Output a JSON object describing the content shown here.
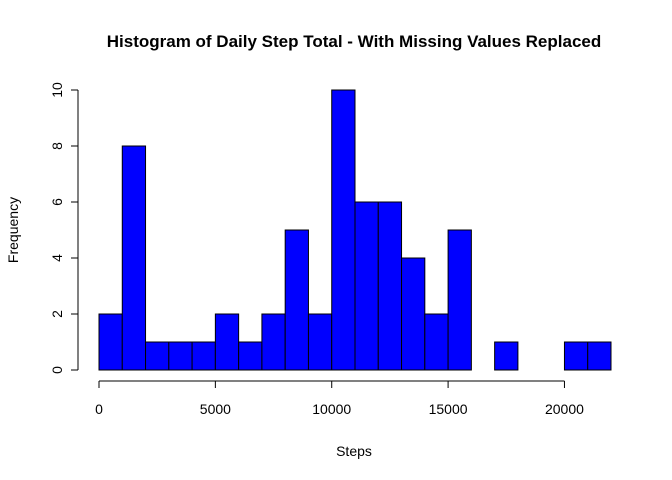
{
  "chart_data": {
    "type": "bar",
    "title": "Histogram of Daily Step Total - With Missing Values Replaced",
    "xlabel": "Steps",
    "ylabel": "Frequency",
    "bin_width": 1000,
    "bins_start": [
      0,
      1000,
      2000,
      3000,
      4000,
      5000,
      6000,
      7000,
      8000,
      9000,
      10000,
      11000,
      12000,
      13000,
      14000,
      15000,
      16000,
      17000,
      18000,
      19000,
      20000,
      21000
    ],
    "values": [
      2,
      8,
      1,
      1,
      1,
      2,
      1,
      2,
      5,
      2,
      10,
      6,
      6,
      4,
      2,
      5,
      0,
      1,
      0,
      0,
      1,
      1
    ],
    "xlim": [
      0,
      22000
    ],
    "ylim": [
      0,
      10
    ],
    "xticks": [
      0,
      5000,
      10000,
      15000,
      20000
    ],
    "xtick_labels": [
      "0",
      "5000",
      "10000",
      "15000",
      "20000"
    ],
    "yticks": [
      0,
      2,
      4,
      6,
      8,
      10
    ],
    "ytick_labels": [
      "0",
      "2",
      "4",
      "6",
      "8",
      "10"
    ],
    "bar_color": "#0000ff",
    "bar_border": "#000000",
    "grid": false,
    "legend": "none"
  }
}
